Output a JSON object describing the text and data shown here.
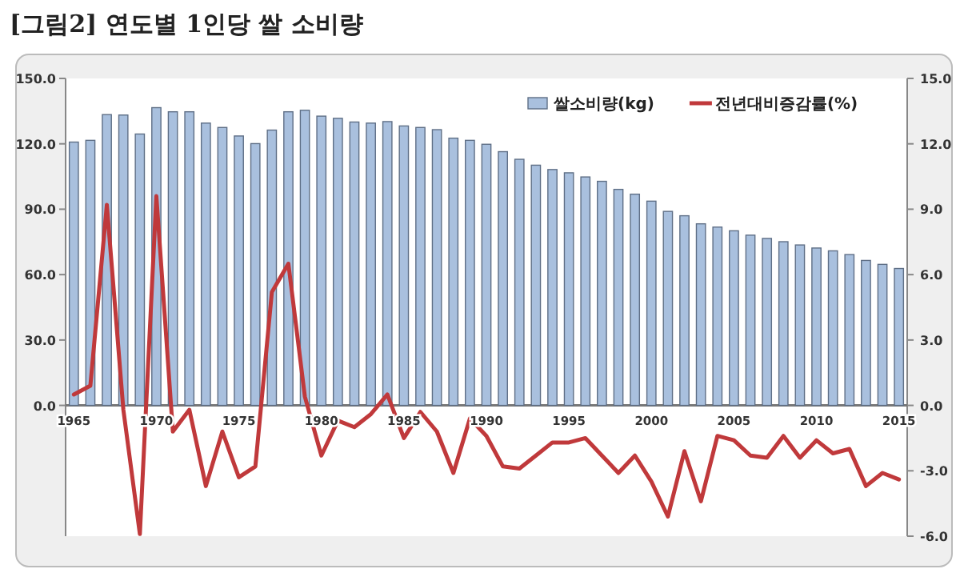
{
  "chart_data": {
    "type": "bar",
    "title": "[그림2] 연도별 1인당 쌀 소비량",
    "legend": "top right",
    "x": [
      1965,
      1966,
      1967,
      1968,
      1969,
      1970,
      1971,
      1972,
      1973,
      1974,
      1975,
      1976,
      1977,
      1978,
      1979,
      1980,
      1981,
      1982,
      1983,
      1984,
      1985,
      1986,
      1987,
      1988,
      1989,
      1990,
      1991,
      1992,
      1993,
      1994,
      1995,
      1996,
      1997,
      1998,
      1999,
      2000,
      2001,
      2002,
      2003,
      2004,
      2005,
      2006,
      2007,
      2008,
      2009,
      2010,
      2011,
      2012,
      2013,
      2014,
      2015
    ],
    "xlim": [
      1964.5,
      2015.5
    ],
    "xticks": [
      1965,
      1970,
      1975,
      1980,
      1985,
      1990,
      1995,
      2000,
      2005,
      2010,
      2015
    ],
    "ylim": [
      -60,
      150
    ],
    "yticks": [
      {
        "value": 0,
        "label": "0.0"
      },
      {
        "value": 30,
        "label": "30.0"
      },
      {
        "value": 60,
        "label": "60.0"
      },
      {
        "value": 90,
        "label": "90.0"
      },
      {
        "value": 120,
        "label": "120.0"
      },
      {
        "value": 150,
        "label": "150.0"
      }
    ],
    "y2lim": [
      -6,
      15
    ],
    "y2ticks": [
      {
        "value": -6,
        "label": "-6.0"
      },
      {
        "value": -3,
        "label": "-3.0"
      },
      {
        "value": 0,
        "label": "0.0"
      },
      {
        "value": 3,
        "label": "3.0"
      },
      {
        "value": 6,
        "label": "6.0"
      },
      {
        "value": 9,
        "label": "9.0"
      },
      {
        "value": 12,
        "label": "12.0"
      },
      {
        "value": 15,
        "label": "15.0"
      }
    ],
    "series": [
      {
        "name": "쌀소비량(kg)",
        "color": "#a9c0de",
        "values": [
          120.8,
          121.6,
          133.4,
          133.2,
          124.5,
          136.6,
          134.7,
          134.7,
          129.5,
          127.5,
          123.6,
          120.1,
          126.3,
          134.7,
          135.4,
          132.7,
          131.7,
          130.0,
          129.5,
          130.2,
          128.2,
          127.5,
          126.5,
          122.6,
          121.6,
          119.8,
          116.4,
          112.9,
          110.2,
          108.2,
          106.7,
          104.8,
          102.8,
          99.1,
          96.9,
          93.7,
          89.0,
          87.0,
          83.3,
          81.8,
          80.1,
          78.1,
          76.6,
          75.1,
          73.6,
          72.2,
          70.9,
          69.2,
          66.5,
          64.7,
          62.8
        ]
      },
      {
        "name": "전년대비증감률(%)",
        "type": "line",
        "axis": "y2",
        "color": "#c0393b",
        "values": [
          0.5,
          0.9,
          9.2,
          -0.2,
          -5.9,
          9.6,
          -1.2,
          -0.2,
          -3.7,
          -1.2,
          -3.3,
          -2.8,
          5.2,
          6.5,
          0.4,
          -2.3,
          -0.7,
          -1.0,
          -0.4,
          0.5,
          -1.5,
          -0.3,
          -1.2,
          -3.1,
          -0.6,
          -1.4,
          -2.8,
          -2.9,
          -2.3,
          -1.7,
          -1.7,
          -1.5,
          -2.3,
          -3.1,
          -2.3,
          -3.5,
          -5.1,
          -2.1,
          -4.4,
          -1.4,
          -1.6,
          -2.3,
          -2.4,
          -1.4,
          -2.4,
          -1.6,
          -2.2,
          -2.0,
          -3.7,
          -3.1,
          -3.4
        ]
      }
    ]
  }
}
